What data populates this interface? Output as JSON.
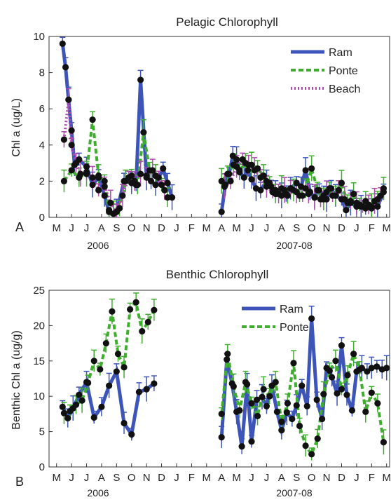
{
  "chart_data": [
    {
      "type": "line",
      "panel_label": "A",
      "title": "Pelagic Chlorophyll",
      "ylabel": "Chl a (ug/L)",
      "xlabel": "",
      "ylim": [
        0,
        10
      ],
      "yticks": [
        0,
        2,
        4,
        6,
        8,
        10
      ],
      "month_ticks": [
        "M",
        "J",
        "J",
        "A",
        "S",
        "O",
        "N",
        "D",
        "J",
        "F",
        "M",
        "A",
        "M",
        "J",
        "J",
        "A",
        "S",
        "O",
        "N",
        "D",
        "J",
        "F",
        "M"
      ],
      "year_labels": [
        "2006",
        "2007-08"
      ],
      "legend": {
        "placement": "top-right",
        "entries": [
          "Ram",
          "Ponte",
          "Beach"
        ]
      },
      "series": [
        {
          "name": "Ram",
          "color": "#3d55b8",
          "style": "solid",
          "x": [
            0.4,
            0.6,
            0.8,
            1.0,
            1.2,
            1.5,
            2.0,
            2.4,
            2.8,
            3.2,
            3.5,
            3.8,
            4.0,
            4.5,
            5.0,
            5.3,
            5.6,
            6.0,
            6.3,
            6.6,
            7.1,
            7.4,
            7.7,
            11.0,
            11.25,
            11.5,
            11.75,
            12.0,
            12.2,
            12.5,
            12.75,
            13.0,
            13.3,
            13.6,
            14.0,
            14.3,
            14.6,
            15.0,
            15.3,
            15.6,
            16.0,
            16.3,
            16.6,
            16.9,
            17.2,
            17.5,
            17.8,
            18.0,
            18.3,
            18.6,
            19.0,
            19.3,
            19.6,
            20.0,
            20.3,
            20.6,
            21.0,
            21.4,
            21.8
          ],
          "y": [
            9.6,
            8.3,
            6.5,
            4.8,
            2.9,
            3.2,
            2.8,
            1.8,
            2.2,
            1.2,
            0.3,
            0.2,
            0.3,
            2.0,
            1.9,
            1.8,
            7.6,
            2.2,
            2.0,
            1.8,
            2.7,
            1.9,
            1.1,
            0.3,
            1.8,
            2.4,
            3.4,
            3.2,
            2.5,
            2.2,
            2.6,
            2.1,
            1.6,
            1.5,
            2.0,
            1.7,
            1.5,
            1.2,
            1.3,
            1.6,
            1.9,
            1.7,
            2.6,
            1.4,
            1.1,
            1.5,
            1.2,
            1.0,
            1.6,
            1.2,
            1.0,
            0.4,
            0.8,
            0.6,
            0.6,
            0.5,
            0.5,
            0.6,
            1.4
          ]
        },
        {
          "name": "Ponte",
          "color": "#3fae2e",
          "style": "dashed",
          "x": [
            0.5,
            1.0,
            1.5,
            2.0,
            2.4,
            2.8,
            3.2,
            3.5,
            3.8,
            4.2,
            4.6,
            5.0,
            5.4,
            5.8,
            6.2,
            6.6,
            7.0,
            7.4,
            11.0,
            11.4,
            11.8,
            12.2,
            12.6,
            13.0,
            13.4,
            13.8,
            14.2,
            14.6,
            15.0,
            15.4,
            15.8,
            16.2,
            16.6,
            17.0,
            17.4,
            17.8,
            18.2,
            18.6,
            19.0,
            19.4,
            19.8,
            20.2,
            20.6,
            21.0,
            21.4,
            21.8
          ],
          "y": [
            2.0,
            2.6,
            2.2,
            2.4,
            5.4,
            2.3,
            2.0,
            0.4,
            0.2,
            0.5,
            2.0,
            2.3,
            1.8,
            4.7,
            2.6,
            2.3,
            1.8,
            1.1,
            2.0,
            2.4,
            2.9,
            2.6,
            3.0,
            2.9,
            2.7,
            2.3,
            1.9,
            1.3,
            1.6,
            1.2,
            1.5,
            1.2,
            1.6,
            2.7,
            1.5,
            1.0,
            1.6,
            1.2,
            1.9,
            0.8,
            1.3,
            0.7,
            0.9,
            0.6,
            1.0,
            1.6
          ]
        },
        {
          "name": "Beach",
          "color": "#b04ab0",
          "style": "dotted",
          "x": [
            0.5,
            0.8,
            1.0,
            1.3,
            1.6,
            2.0,
            2.4,
            2.8,
            3.2,
            3.6,
            4.0,
            4.4,
            4.8,
            5.2,
            5.6,
            6.0,
            6.4,
            6.8,
            7.2,
            11.2,
            11.6,
            12.0,
            12.4,
            12.8,
            13.2,
            13.6,
            14.0,
            14.4,
            14.8,
            15.2,
            15.6,
            16.0,
            16.4,
            16.8,
            17.2,
            17.6,
            18.0,
            18.4,
            18.8,
            19.2,
            19.6,
            20.0,
            20.4,
            20.8,
            21.2,
            21.6
          ],
          "y": [
            4.3,
            6.5,
            4.0,
            3.0,
            2.4,
            2.5,
            2.2,
            1.5,
            1.7,
            0.8,
            0.3,
            1.2,
            2.2,
            2.0,
            2.4,
            2.3,
            2.6,
            2.2,
            1.5,
            1.7,
            2.0,
            2.8,
            3.2,
            2.9,
            2.6,
            2.2,
            1.7,
            1.4,
            1.3,
            1.5,
            1.6,
            1.4,
            1.2,
            1.3,
            1.1,
            1.0,
            1.4,
            1.2,
            1.5,
            1.0,
            0.9,
            0.8,
            0.6,
            0.7,
            0.9,
            1.2
          ]
        }
      ]
    },
    {
      "type": "line",
      "panel_label": "B",
      "title": "Benthic Chlorophyll",
      "ylabel": "Benthic Chl a (ug/g)",
      "xlabel": "",
      "ylim": [
        0,
        25
      ],
      "yticks": [
        0,
        5,
        10,
        15,
        20,
        25
      ],
      "month_ticks": [
        "M",
        "J",
        "J",
        "A",
        "S",
        "O",
        "N",
        "D",
        "J",
        "F",
        "M",
        "A",
        "M",
        "J",
        "J",
        "A",
        "S",
        "O",
        "N",
        "D",
        "J",
        "F",
        "M"
      ],
      "year_labels": [
        "2006",
        "2007-08"
      ],
      "legend": {
        "placement": "top-center",
        "entries": [
          "Ram",
          "Ponte"
        ]
      },
      "series": [
        {
          "name": "Ram",
          "color": "#3d55b8",
          "style": "solid",
          "x": [
            0.4,
            0.75,
            1.1,
            1.5,
            2.0,
            2.5,
            3.0,
            3.5,
            4.0,
            4.5,
            5.0,
            5.5,
            6.0,
            6.5,
            11.0,
            11.35,
            11.7,
            12.0,
            12.35,
            12.7,
            13.0,
            13.35,
            13.7,
            14.0,
            14.35,
            14.7,
            15.0,
            15.35,
            15.7,
            16.0,
            16.35,
            16.7,
            17.0,
            17.35,
            17.7,
            18.0,
            18.35,
            18.7,
            19.0,
            19.35,
            19.7,
            20.0,
            20.35,
            20.7,
            21.0,
            21.35,
            21.7,
            22.0
          ],
          "y": [
            8.5,
            6.9,
            8.3,
            10.2,
            12.0,
            7.0,
            8.5,
            11.5,
            13.5,
            6.2,
            4.6,
            10.6,
            11.0,
            11.8,
            4.2,
            15.2,
            11.8,
            7.8,
            2.9,
            11.7,
            3.6,
            9.5,
            9.9,
            8.6,
            11.5,
            7.8,
            5.2,
            7.7,
            6.8,
            8.7,
            11.5,
            8.6,
            21.0,
            9.5,
            6.8,
            14.0,
            12.7,
            10.4,
            17.2,
            10.2,
            8.0,
            13.5,
            14.0,
            13.5,
            14.0,
            14.2,
            13.8,
            14.0
          ]
        },
        {
          "name": "Ponte",
          "color": "#3fae2e",
          "style": "dashed",
          "x": [
            0.5,
            0.9,
            1.3,
            1.7,
            2.1,
            2.5,
            2.9,
            3.3,
            3.7,
            4.1,
            4.5,
            4.9,
            5.3,
            5.7,
            6.1,
            6.5,
            11.0,
            11.4,
            11.8,
            12.2,
            12.6,
            13.0,
            13.4,
            13.8,
            14.2,
            14.6,
            15.0,
            15.4,
            15.8,
            16.2,
            16.6,
            17.0,
            17.4,
            17.8,
            18.2,
            18.6,
            19.0,
            19.4,
            19.8,
            20.2,
            20.6,
            21.0,
            21.4,
            21.8
          ],
          "y": [
            7.6,
            7.9,
            8.8,
            9.4,
            11.9,
            15.0,
            13.8,
            17.5,
            22.0,
            16.0,
            14.1,
            22.3,
            23.3,
            19.2,
            20.5,
            22.2,
            7.5,
            16.0,
            11.4,
            8.0,
            12.0,
            9.0,
            7.2,
            11.0,
            10.0,
            12.0,
            6.4,
            9.0,
            14.7,
            5.8,
            3.0,
            1.8,
            4.0,
            10.3,
            13.6,
            15.0,
            11.0,
            13.0,
            16.0,
            13.8,
            7.8,
            10.5,
            9.0,
            3.5
          ]
        }
      ]
    }
  ]
}
